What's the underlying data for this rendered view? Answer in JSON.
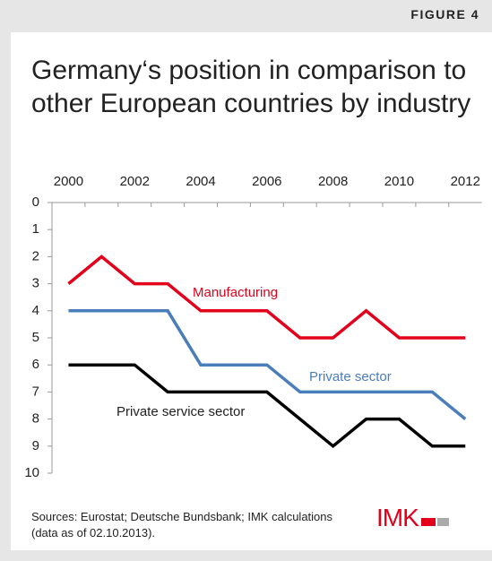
{
  "figure_label": "FIGURE 4",
  "chart_data": {
    "type": "line",
    "title": "Germany‘s position in comparison to other European countries by industry",
    "categories": [
      "2000",
      null,
      "2002",
      null,
      "2004",
      null,
      "2006",
      null,
      "2008",
      null,
      "2010",
      null,
      "2012"
    ],
    "series": [
      {
        "name": "Manufacturing",
        "color": "#e2001a",
        "values": [
          3,
          2,
          3,
          3,
          4,
          4,
          4,
          5,
          5,
          4,
          5,
          5,
          5
        ]
      },
      {
        "name": "Private sector",
        "color": "#4a7ebb",
        "values": [
          4,
          4,
          4,
          4,
          6,
          6,
          6,
          7,
          7,
          7,
          7,
          7,
          8
        ]
      },
      {
        "name": "Private service sector",
        "color": "#000000",
        "values": [
          6,
          6,
          6,
          7,
          7,
          7,
          7,
          8,
          9,
          8,
          8,
          9,
          9
        ]
      }
    ],
    "ylim": [
      10,
      0
    ],
    "yticks": [
      0,
      1,
      2,
      3,
      4,
      5,
      6,
      7,
      8,
      9,
      10
    ],
    "x_axis_position": "top",
    "source": "Sources: Eurostat; Deutsche Bundsbank; IMK calculations (data as of 02.10.2013)."
  },
  "logo": "IMK"
}
